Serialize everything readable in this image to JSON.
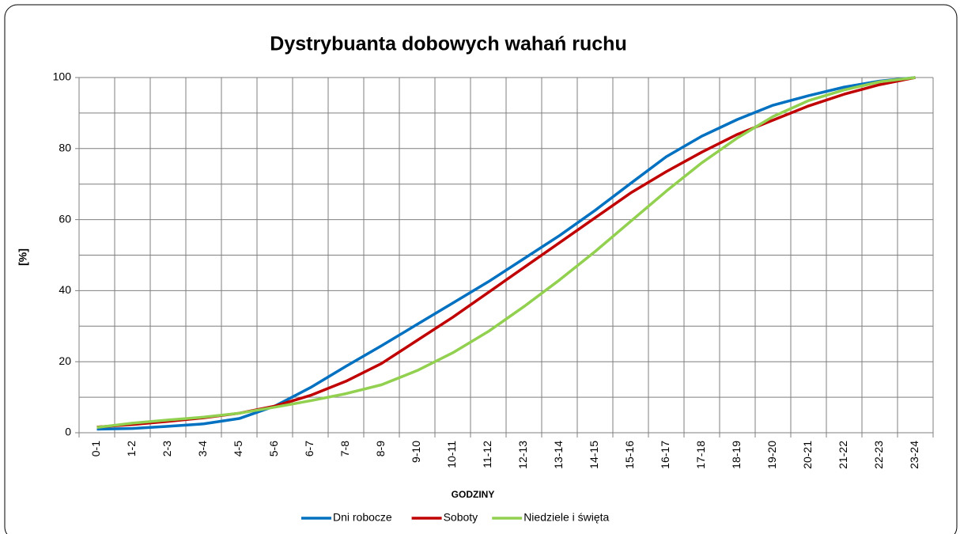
{
  "chart_data": {
    "type": "line",
    "title": "Dystrybuanta dobowych wahań ruchu",
    "x_label": "Godziny",
    "y_label": "[%]",
    "categories": [
      "0-1",
      "1-2",
      "2-3",
      "3-4",
      "4-5",
      "5-6",
      "6-7",
      "7-8",
      "8-9",
      "9-10",
      "10-11",
      "11-12",
      "12-13",
      "13-14",
      "14-15",
      "15-16",
      "16-17",
      "17-18",
      "18-19",
      "19-20",
      "20-21",
      "21-22",
      "22-23",
      "23-24"
    ],
    "series": [
      {
        "name": "Dni robocze",
        "color": "#0070c0",
        "values": [
          1.0,
          1.2,
          1.8,
          2.5,
          4.0,
          7.5,
          12.7,
          18.7,
          24.5,
          30.5,
          36.5,
          42.5,
          49,
          55.5,
          62.6,
          70.2,
          77.7,
          83.5,
          88.2,
          92.2,
          94.9,
          97.3,
          99,
          100
        ]
      },
      {
        "name": "Soboty",
        "color": "#c00000",
        "values": [
          1.6,
          2.3,
          3.2,
          4.2,
          5.5,
          7.5,
          10.5,
          14.5,
          19.5,
          26,
          32.5,
          39.5,
          46.5,
          53.5,
          60.5,
          67.5,
          73.5,
          79,
          84,
          88,
          92,
          95.3,
          98,
          100
        ]
      },
      {
        "name": "Niedziele i święta",
        "color": "#92d050",
        "values": [
          1.5,
          2.7,
          3.6,
          4.4,
          5.5,
          7.2,
          9.0,
          11.0,
          13.5,
          17.5,
          22.5,
          28.5,
          35.5,
          43,
          51,
          59.5,
          68,
          76,
          83,
          89,
          93.5,
          96.5,
          98.8,
          100
        ]
      }
    ],
    "ylim": [
      0,
      100
    ],
    "yticks": [
      0,
      20,
      40,
      60,
      80,
      100
    ],
    "minor_grid": [
      10,
      30,
      50,
      70,
      90
    ],
    "grid": true,
    "legend": "bottom"
  }
}
